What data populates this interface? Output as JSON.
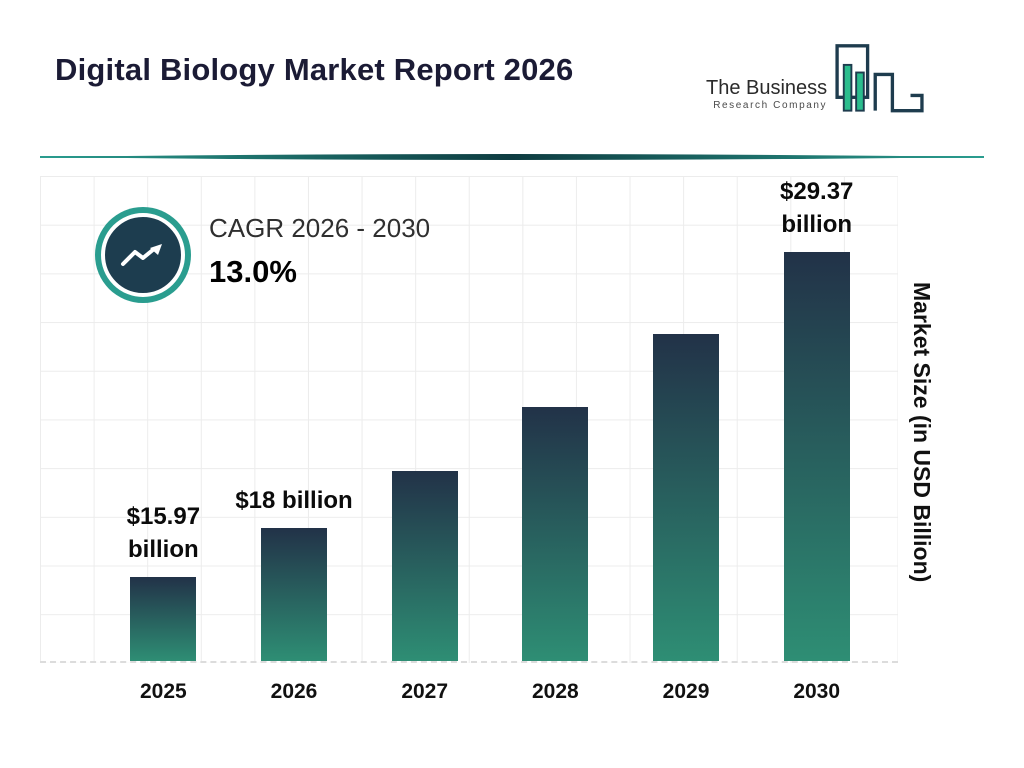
{
  "header": {
    "title": "Digital Biology Market Report 2026",
    "logo": {
      "line1": "The Business",
      "line2": "Research Company"
    }
  },
  "cagr": {
    "label": "CAGR 2026 - 2030",
    "value": "13.0%"
  },
  "chart_data": {
    "type": "bar",
    "title": "Digital Biology Market Report 2026",
    "categories": [
      "2025",
      "2026",
      "2027",
      "2028",
      "2029",
      "2030"
    ],
    "values": [
      15.97,
      18,
      20.34,
      22.98,
      25.97,
      29.37
    ],
    "value_labels": [
      [
        "$15.97",
        "billion"
      ],
      [
        "$18 billion"
      ],
      [],
      [],
      [],
      [
        "$29.37",
        "billion"
      ]
    ],
    "xlabel": "",
    "ylabel": "Market Size (in USD Billion)",
    "ylim": [
      12.5,
      32.5
    ],
    "grid": true,
    "legend": "none",
    "cagr_pct": 13.0
  },
  "colors": {
    "accent_teal": "#2a9d8f",
    "dark_navy": "#1e3c4e",
    "bar_gradient_top": "#223248",
    "bar_gradient_bottom": "#2e8e74",
    "title_text": "#1b1b35"
  }
}
